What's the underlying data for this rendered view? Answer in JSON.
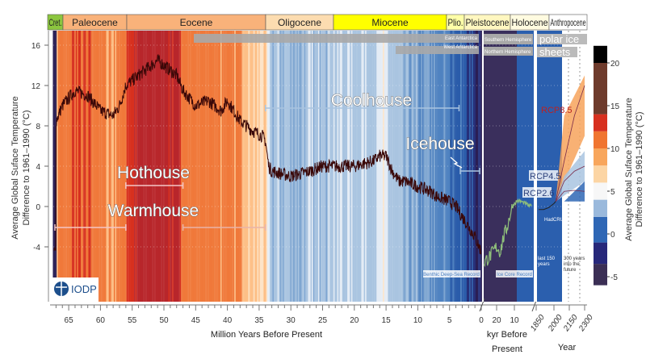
{
  "chart_data": {
    "type": "line",
    "epochs": [
      {
        "name": "Cret.",
        "from": 67.5,
        "to": 66,
        "color": "#8cc63f"
      },
      {
        "name": "Paleocene",
        "from": 66,
        "to": 56,
        "color": "#f9b27a"
      },
      {
        "name": "Eocene",
        "from": 56,
        "to": 33.9,
        "color": "#f9b27a"
      },
      {
        "name": "Oligocene",
        "from": 33.9,
        "to": 23,
        "color": "#fcdcb0"
      },
      {
        "name": "Miocene",
        "from": 23,
        "to": 5.3,
        "color": "#ffff00"
      },
      {
        "name": "Plio.",
        "from": 5.3,
        "to": 2.6,
        "color": "#ffffa8"
      },
      {
        "name": "Pleistocene",
        "from": 2.6,
        "to": 0,
        "color": "#fff7c0"
      },
      {
        "name": "Holocene",
        "panel": "kyr",
        "color": "#fffbe0"
      },
      {
        "name": "Anthropocene",
        "panel": "year",
        "color": "#ffffff"
      }
    ],
    "ylabel": "Average Global Suface Temperature Difference to 1961–1990 (°C)",
    "yticks": [
      16,
      12,
      8,
      4,
      0,
      -4
    ],
    "ylim": [
      -9,
      17
    ],
    "x_main": {
      "label": "Million Years Before Present",
      "ticks": [
        65,
        60,
        55,
        50,
        45,
        40,
        35,
        30,
        25,
        20,
        15,
        10,
        5,
        0
      ],
      "range": [
        67.5,
        0
      ]
    },
    "x_kyr": {
      "label_1": "kyr Before",
      "label_2": "Present",
      "ticks": [
        20,
        10
      ]
    },
    "x_year": {
      "label": "Year",
      "ticks": [
        1850,
        2000,
        2150,
        2300
      ]
    },
    "benthic_record": {
      "name": "Benthic Deep-Sea Record",
      "age_ma": [
        67,
        66,
        64,
        62,
        60,
        58,
        57,
        56,
        54,
        52,
        51,
        50,
        49,
        48,
        47,
        45,
        43,
        41,
        40,
        38,
        36,
        34.5,
        34,
        33.5,
        33,
        30,
        27,
        25,
        22,
        20,
        17,
        16,
        15,
        14,
        13,
        12,
        10,
        8,
        7,
        5,
        4,
        3,
        2,
        1,
        0
      ],
      "temp": [
        8.5,
        10,
        11.5,
        11,
        9.5,
        9,
        10,
        12,
        13,
        14,
        14.5,
        14,
        13.5,
        13,
        11.5,
        10,
        10.5,
        9.5,
        10.5,
        8.5,
        7.5,
        7,
        6.5,
        4,
        3.5,
        3,
        3.5,
        4,
        4,
        4,
        4.5,
        5,
        5,
        3.5,
        2.5,
        2.5,
        2,
        1.5,
        1,
        0.5,
        0,
        -1,
        -2,
        -3,
        -4.5
      ]
    },
    "ice_core_record": {
      "name": "Ice Core Record",
      "age_kyr": [
        27,
        24,
        22,
        20,
        18,
        16,
        14,
        12,
        11,
        10,
        8,
        5,
        2,
        0
      ],
      "temp": [
        -5.5,
        -5,
        -4.5,
        -4,
        -4.5,
        -3,
        -2,
        -0.5,
        0,
        0.3,
        0.6,
        0.4,
        0.1,
        0
      ]
    },
    "hadcrut4": {
      "name": "HadCRUT4",
      "year": [
        1850,
        1900,
        1950,
        2000,
        2017
      ],
      "temp": [
        -0.3,
        -0.3,
        -0.1,
        0.3,
        0.5
      ]
    },
    "projections": [
      {
        "name": "RCP8.5",
        "year": [
          2017,
          2100,
          2200,
          2300
        ],
        "temp": [
          0.5,
          4.5,
          9,
          12
        ],
        "band": [
          7,
          13
        ],
        "color": "#f7a35c"
      },
      {
        "name": "RCP4.5",
        "year": [
          2017,
          2100,
          2200,
          2300
        ],
        "temp": [
          0.5,
          2.5,
          3.5,
          4
        ],
        "band": [
          2.5,
          5.5
        ],
        "color": "#a9c4e0"
      },
      {
        "name": "RCP2.6",
        "year": [
          2017,
          2100,
          2200,
          2300
        ],
        "temp": [
          0.5,
          1.5,
          1.6,
          1.5
        ],
        "band": [
          0.5,
          2.5
        ],
        "color": "#2f67b5"
      }
    ],
    "climate_states": [
      {
        "name": "Hothouse",
        "from": 56,
        "to": 47
      },
      {
        "name": "Warmhouse",
        "ranges": [
          [
            66,
            56
          ],
          [
            47,
            34
          ]
        ]
      },
      {
        "name": "Coolhouse",
        "from": 34,
        "to": 3.3
      },
      {
        "name": "Icehouse",
        "from": 3.3,
        "to": 0
      }
    ],
    "ice_sheets": {
      "east": "East Antarctica",
      "west": "West Antarctica",
      "south": "Southern Hemisphere",
      "north": "Northern Hemisphere",
      "polar_1": "polar ice",
      "polar_2": "sheets"
    },
    "period_notes": {
      "past": "last 150 years",
      "future": "300 years into the future"
    },
    "colorbar": {
      "ticks": [
        20,
        15,
        10,
        5,
        0,
        -5
      ],
      "label": "Average Global Suface Temperature Difference to 1961–1990 (°C)",
      "bands": [
        [
          -6,
          -3.5,
          "#3b2f55"
        ],
        [
          -3.5,
          -1,
          "#27287a"
        ],
        [
          -1,
          2,
          "#2f67b5"
        ],
        [
          2,
          4,
          "#9ab9dc"
        ],
        [
          4,
          6,
          "#f7f7f7"
        ],
        [
          6,
          8,
          "#fcd5a4"
        ],
        [
          8,
          10,
          "#f8a65c"
        ],
        [
          10,
          12,
          "#f07530"
        ],
        [
          12,
          14,
          "#d7301f"
        ],
        [
          14,
          20,
          "#6e3b2c"
        ],
        [
          20,
          22,
          "#000000"
        ]
      ]
    }
  },
  "logo": {
    "text": "IODP"
  }
}
